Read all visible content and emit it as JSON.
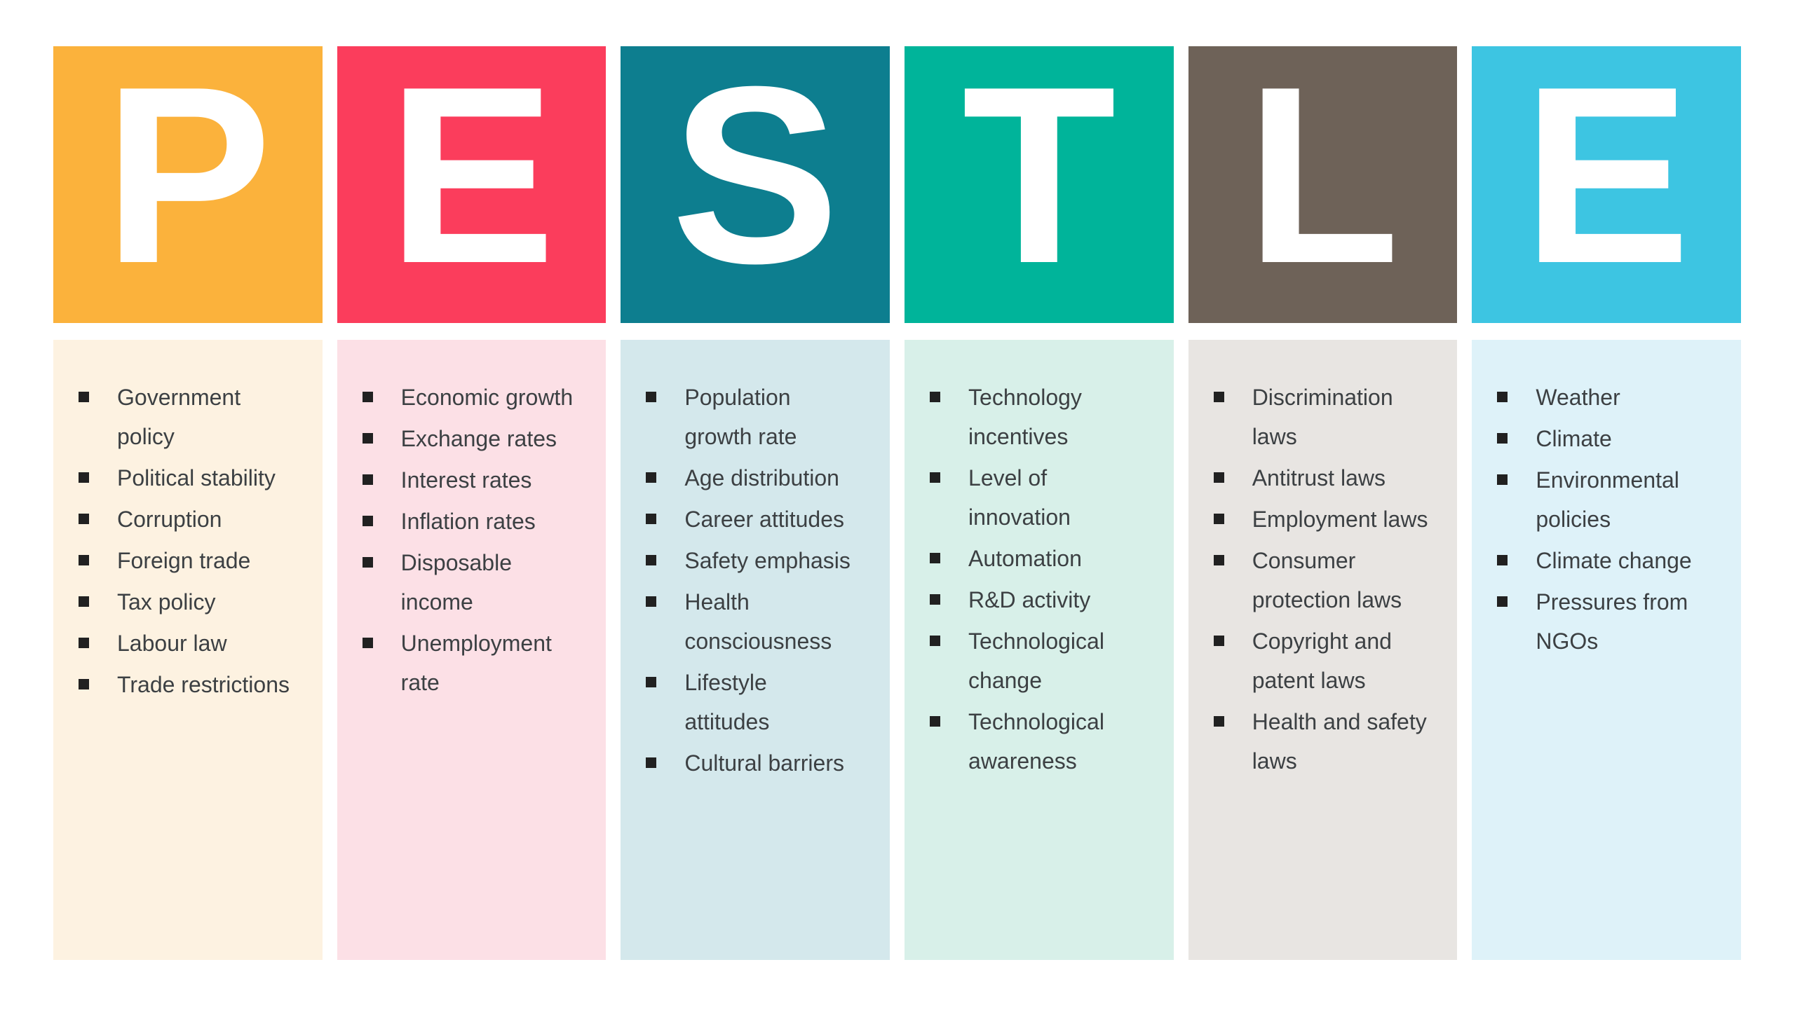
{
  "title": "PESTLE",
  "text_color": "#3C4043",
  "bullet_color": "#212121",
  "bullet_icon": "square-bullet",
  "columns": [
    {
      "letter": "P",
      "header_color": "#FBB23C",
      "panel_color": "#FDF2E1",
      "items": [
        "Government\npolicy",
        "Political stability",
        "Corruption",
        "Foreign trade",
        "Tax policy",
        "Labour law",
        "Trade restrictions"
      ]
    },
    {
      "letter": "E",
      "header_color": "#FB3D5C",
      "panel_color": "#FCE0E6",
      "items": [
        "Economic growth",
        "Exchange rates",
        "Interest rates",
        "Inflation rates",
        "Disposable\nincome",
        "Unemployment\nrate"
      ]
    },
    {
      "letter": "S",
      "header_color": "#0D7E8F",
      "panel_color": "#D4E8EC",
      "items": [
        "Population\ngrowth rate",
        "Age distribution",
        "Career attitudes",
        "Safety emphasis",
        "Health\nconsciousness",
        "Lifestyle\nattitudes",
        "Cultural barriers"
      ]
    },
    {
      "letter": "T",
      "header_color": "#00B49A",
      "panel_color": "#D8F0E9",
      "items": [
        "Technology\nincentives",
        "Level of\ninnovation",
        "Automation",
        "R&D activity",
        "Technological\nchange",
        "Technological\nawareness"
      ]
    },
    {
      "letter": "L",
      "header_color": "#6E6258",
      "panel_color": "#E8E5E2",
      "items": [
        "Discrimination\nlaws",
        "Antitrust laws",
        "Employment laws",
        "Consumer\nprotection laws",
        "Copyright and\npatent laws",
        "Health and safety\nlaws"
      ]
    },
    {
      "letter": "E",
      "header_color": "#3DC5E2",
      "panel_color": "#DEF2F9",
      "items": [
        "Weather",
        "Climate",
        "Environmental\npolicies",
        "Climate change",
        "Pressures from\nNGOs"
      ]
    }
  ]
}
